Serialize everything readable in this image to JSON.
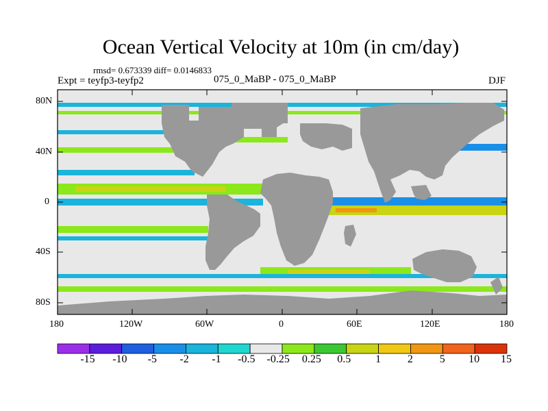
{
  "title": "Ocean Vertical Velocity at 10m (in cm/day)",
  "stats": "rmsd= 0.673339 diff= 0.0146833",
  "expt": "Expt = teyfp3-teyfp2",
  "subtitle": "075_0_MaBP - 075_0_MaBP",
  "season": "DJF",
  "lat_labels": [
    "80N",
    "40N",
    "0",
    "40S",
    "80S"
  ],
  "lon_labels": [
    "180",
    "120W",
    "60W",
    "0",
    "60E",
    "120E",
    "180"
  ],
  "colorbar": {
    "labels": [
      "-15",
      "-10",
      "-5",
      "-2",
      "-1",
      "-0.5",
      "-0.25",
      "0.25",
      "0.5",
      "1",
      "2",
      "5",
      "10",
      "15"
    ],
    "colors": [
      "#9b2fe8",
      "#5a1edc",
      "#2060e0",
      "#1a8fe8",
      "#1ab4dc",
      "#22d6d0",
      "#e8e8e8",
      "#8ce81a",
      "#3cc832",
      "#c8d414",
      "#f0c814",
      "#f09614",
      "#f0641e",
      "#dc320a"
    ]
  },
  "map_colors": {
    "land": "#999999",
    "background": "#e8e8e8",
    "downwelling": "#1ab4dc",
    "strong_downwelling": "#1a8fe8",
    "upwelling": "#8ce81a",
    "moderate_upwelling": "#c8d414",
    "strong_upwelling": "#f09614"
  },
  "chart_data": {
    "type": "heatmap",
    "title": "Ocean Vertical Velocity at 10m (in cm/day)",
    "projection": "cylindrical equidistant",
    "x_range": [
      -180,
      180
    ],
    "y_range": [
      -90,
      90
    ],
    "x_ticks": [
      -180,
      -120,
      -60,
      0,
      60,
      120,
      180
    ],
    "y_ticks": [
      80,
      40,
      0,
      -40,
      -80
    ],
    "units": "cm/day",
    "contour_levels": [
      -15,
      -10,
      -5,
      -2,
      -1,
      -0.5,
      -0.25,
      0.25,
      0.5,
      1,
      2,
      5,
      10,
      15
    ]
  }
}
